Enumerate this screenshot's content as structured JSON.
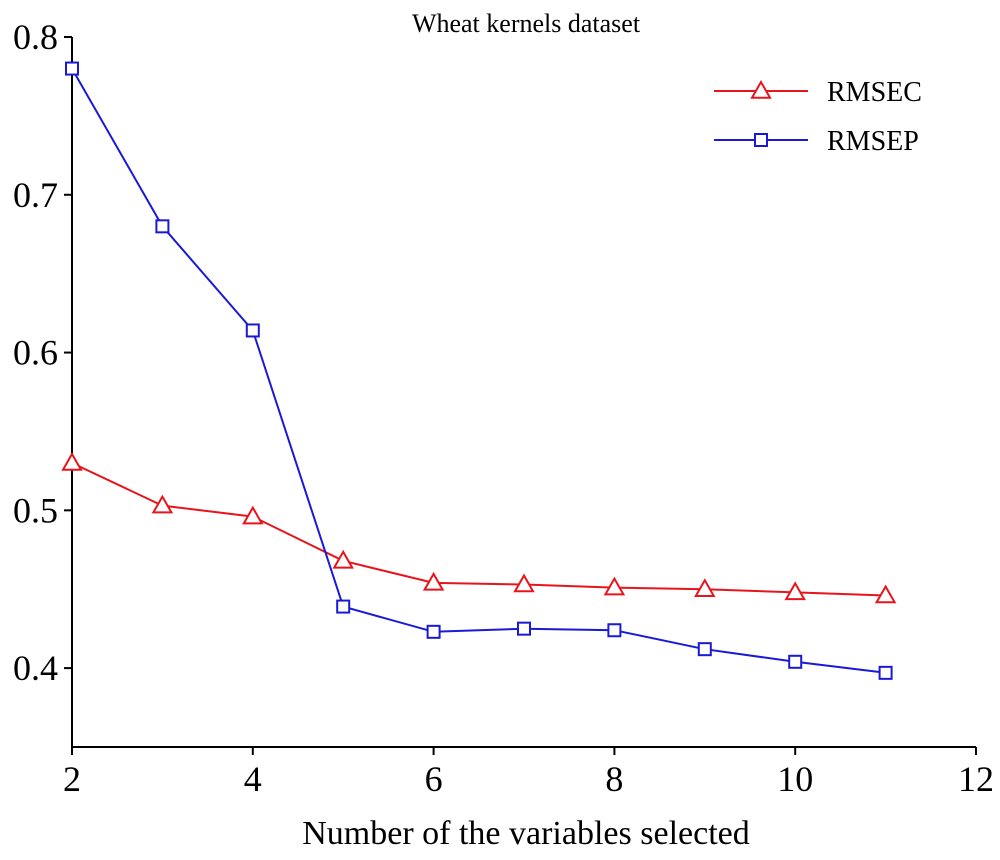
{
  "chart_data": {
    "type": "line",
    "title": "Wheat kernels dataset",
    "xlabel": "Number of the variables selected",
    "ylabel": "",
    "xlim": [
      2,
      12
    ],
    "ylim": [
      0.35,
      0.8
    ],
    "x_ticks": [
      2,
      4,
      6,
      8,
      10,
      12
    ],
    "x_tick_labels": [
      "2",
      "4",
      "6",
      "8",
      "10",
      "12"
    ],
    "y_ticks": [
      0.4,
      0.5,
      0.6,
      0.7,
      0.8
    ],
    "y_tick_labels": [
      "0.4",
      "0.5",
      "0.6",
      "0.7",
      "0.8"
    ],
    "legend_position": "top-right",
    "grid": false,
    "x": [
      2,
      3,
      4,
      5,
      6,
      7,
      8,
      9,
      10,
      11
    ],
    "series": [
      {
        "name": "RMSEC",
        "color": "#e8141c",
        "marker": "triangle",
        "values": [
          0.53,
          0.503,
          0.496,
          0.468,
          0.454,
          0.453,
          0.451,
          0.45,
          0.448,
          0.446
        ]
      },
      {
        "name": "RMSEP",
        "color": "#1a1ad6",
        "marker": "square",
        "values": [
          0.78,
          0.68,
          0.614,
          0.439,
          0.423,
          0.425,
          0.424,
          0.412,
          0.404,
          0.397
        ]
      }
    ]
  }
}
